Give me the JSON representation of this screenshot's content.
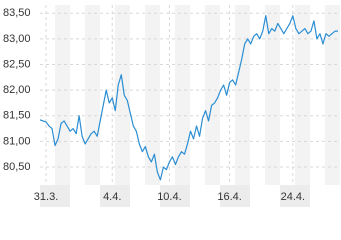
{
  "chart_data": {
    "type": "line",
    "categories": [
      null,
      null,
      "31.3.",
      null,
      null,
      null,
      null,
      null,
      null,
      null,
      null,
      null,
      null,
      null,
      null,
      null,
      null,
      null,
      null,
      null,
      null,
      null,
      null,
      null,
      "4.4.",
      null,
      null,
      null,
      null,
      null,
      null,
      null,
      null,
      null,
      null,
      null,
      null,
      null,
      null,
      null,
      null,
      null,
      null,
      "10.4.",
      null,
      null,
      null,
      null,
      null,
      null,
      null,
      null,
      null,
      null,
      null,
      null,
      null,
      null,
      null,
      null,
      null,
      null,
      null,
      "16.4.",
      null,
      null,
      null,
      null,
      null,
      null,
      null,
      null,
      null,
      null,
      null,
      null,
      null,
      null,
      null,
      null,
      null,
      null,
      null,
      null,
      "24.4.",
      null,
      null,
      null,
      null,
      null,
      null,
      null,
      null,
      null,
      null,
      null,
      null,
      null,
      null,
      null
    ],
    "values": [
      81.42,
      81.4,
      81.38,
      81.3,
      81.25,
      80.92,
      81.05,
      81.35,
      81.4,
      81.3,
      81.2,
      81.25,
      81.15,
      81.5,
      81.1,
      80.95,
      81.05,
      81.15,
      81.2,
      81.1,
      81.4,
      81.7,
      82.0,
      81.75,
      81.85,
      81.6,
      82.1,
      82.3,
      81.9,
      81.8,
      81.55,
      81.3,
      81.2,
      80.95,
      80.8,
      80.9,
      80.7,
      80.6,
      80.75,
      80.4,
      80.25,
      80.5,
      80.45,
      80.6,
      80.7,
      80.55,
      80.7,
      80.8,
      80.75,
      80.95,
      81.2,
      81.05,
      81.3,
      81.1,
      81.45,
      81.6,
      81.4,
      81.7,
      81.75,
      81.85,
      82.0,
      82.1,
      81.9,
      82.15,
      82.2,
      82.1,
      82.35,
      82.6,
      82.9,
      83.0,
      82.9,
      83.05,
      83.1,
      83.0,
      83.15,
      83.45,
      83.1,
      83.2,
      83.15,
      83.3,
      83.2,
      83.1,
      83.2,
      83.3,
      83.45,
      83.2,
      83.1,
      83.15,
      83.2,
      83.1,
      83.15,
      83.35,
      83.0,
      83.1,
      82.9,
      83.1,
      83.05,
      83.1,
      83.15,
      83.15
    ],
    "color": "#2b8ed3",
    "ylim": [
      80.15,
      83.66
    ],
    "yticks": [
      {
        "value": 80.5,
        "label": "80,50"
      },
      {
        "value": 81,
        "label": "81,00"
      },
      {
        "value": 81.5,
        "label": "81,50"
      },
      {
        "value": 82,
        "label": "82,00"
      },
      {
        "value": 82.5,
        "label": "82,50"
      },
      {
        "value": 83,
        "label": "83,00"
      },
      {
        "value": 83.5,
        "label": "83,50"
      }
    ],
    "grid": true
  }
}
